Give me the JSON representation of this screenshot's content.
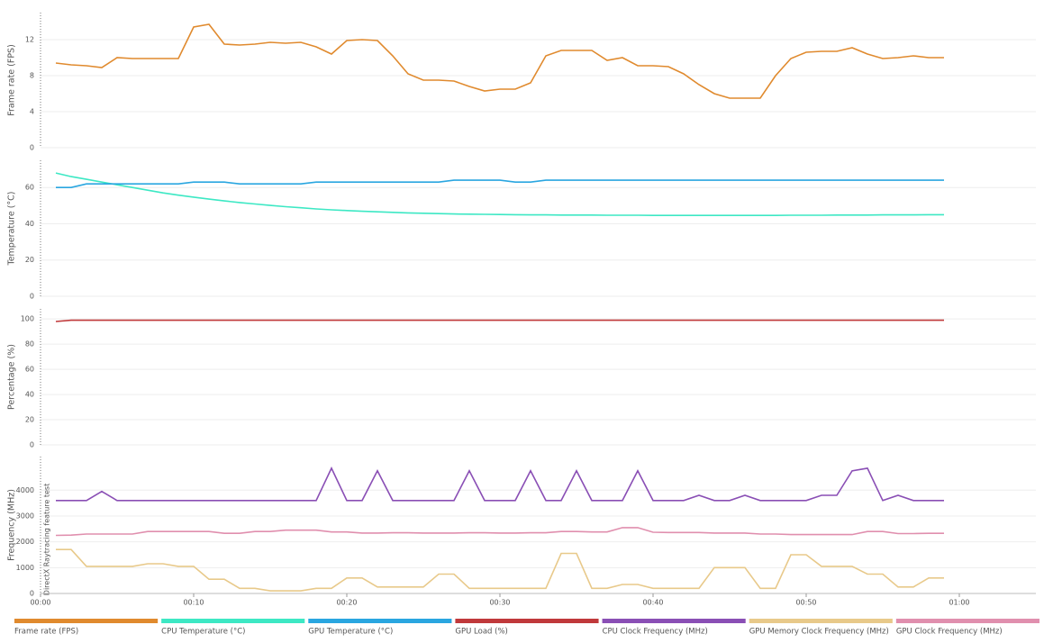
{
  "chart_data": [
    {
      "type": "line",
      "ylabel": "Frame rate (FPS)",
      "xlim": [
        0,
        65
      ],
      "ylim": [
        0,
        15
      ],
      "yticks": [
        0,
        4,
        8,
        12
      ],
      "grid": true,
      "x": [
        1,
        2,
        3,
        4,
        5,
        6,
        7,
        8,
        9,
        10,
        11,
        12,
        13,
        14,
        15,
        16,
        17,
        18,
        19,
        20,
        21,
        22,
        23,
        24,
        25,
        26,
        27,
        28,
        29,
        30,
        31,
        32,
        33,
        34,
        35,
        36,
        37,
        38,
        39,
        40,
        41,
        42,
        43,
        44,
        45,
        46,
        47,
        48,
        49,
        50,
        51,
        52,
        53,
        54,
        55,
        56,
        57,
        58,
        59
      ],
      "series": [
        {
          "name": "Frame rate (FPS)",
          "color": "#e08a2e",
          "values": [
            9.4,
            9.2,
            9.1,
            8.9,
            10.0,
            9.9,
            9.9,
            9.9,
            9.9,
            13.4,
            13.7,
            11.5,
            11.4,
            11.5,
            11.7,
            11.6,
            11.7,
            11.2,
            10.4,
            11.9,
            12.0,
            11.9,
            10.2,
            8.2,
            7.5,
            7.5,
            7.4,
            6.8,
            6.3,
            6.5,
            6.5,
            7.2,
            10.2,
            10.8,
            10.8,
            10.8,
            9.7,
            10.0,
            9.1,
            9.1,
            9.0,
            8.2,
            7.0,
            6.0,
            5.5,
            5.5,
            5.5,
            8.0,
            9.9,
            10.6,
            10.7,
            10.7,
            11.1,
            10.4,
            9.9,
            10.0,
            10.2,
            10.0,
            10.0
          ]
        }
      ]
    },
    {
      "type": "line",
      "ylabel": "Temperature (°C)",
      "xlim": [
        0,
        65
      ],
      "ylim": [
        0,
        75
      ],
      "yticks": [
        0,
        20,
        40,
        60
      ],
      "grid": true,
      "x": [
        1,
        2,
        3,
        4,
        5,
        6,
        7,
        8,
        9,
        10,
        11,
        12,
        13,
        14,
        15,
        16,
        17,
        18,
        19,
        20,
        21,
        22,
        23,
        24,
        25,
        26,
        27,
        28,
        29,
        30,
        31,
        32,
        33,
        34,
        35,
        36,
        37,
        38,
        39,
        40,
        41,
        42,
        43,
        44,
        45,
        46,
        47,
        48,
        49,
        50,
        51,
        52,
        53,
        54,
        55,
        56,
        57,
        58,
        59
      ],
      "series": [
        {
          "name": "CPU Temperature (°C)",
          "color": "#3de8c4",
          "values": [
            68,
            66,
            64.5,
            63,
            61.5,
            60,
            58.5,
            57,
            55.8,
            54.7,
            53.6,
            52.6,
            51.7,
            50.9,
            50.1,
            49.4,
            48.8,
            48.2,
            47.7,
            47.3,
            46.9,
            46.6,
            46.3,
            46,
            45.8,
            45.6,
            45.4,
            45.3,
            45.2,
            45.1,
            45,
            44.9,
            44.9,
            44.8,
            44.8,
            44.8,
            44.7,
            44.7,
            44.7,
            44.6,
            44.6,
            44.6,
            44.6,
            44.6,
            44.6,
            44.6,
            44.6,
            44.6,
            44.7,
            44.7,
            44.7,
            44.8,
            44.8,
            44.8,
            44.9,
            44.9,
            44.9,
            45,
            45
          ]
        },
        {
          "name": "GPU Temperature (°C)",
          "color": "#2aa6e0",
          "values": [
            60,
            60,
            62,
            62,
            62,
            62,
            62,
            62,
            62,
            63,
            63,
            63,
            62,
            62,
            62,
            62,
            62,
            63,
            63,
            63,
            63,
            63,
            63,
            63,
            63,
            63,
            64,
            64,
            64,
            64,
            63,
            63,
            64,
            64,
            64,
            64,
            64,
            64,
            64,
            64,
            64,
            64,
            64,
            64,
            64,
            64,
            64,
            64,
            64,
            64,
            64,
            64,
            64,
            64,
            64,
            64,
            64,
            64,
            64
          ]
        }
      ]
    },
    {
      "type": "line",
      "ylabel": "Percentage (%)",
      "xlim": [
        0,
        65
      ],
      "ylim": [
        0,
        108
      ],
      "yticks": [
        0,
        20,
        40,
        60,
        80,
        100
      ],
      "grid": true,
      "x": [
        1,
        2,
        3,
        4,
        5,
        6,
        7,
        8,
        9,
        10,
        11,
        12,
        13,
        14,
        15,
        16,
        17,
        18,
        19,
        20,
        21,
        22,
        23,
        24,
        25,
        26,
        27,
        28,
        29,
        30,
        31,
        32,
        33,
        34,
        35,
        36,
        37,
        38,
        39,
        40,
        41,
        42,
        43,
        44,
        45,
        46,
        47,
        48,
        49,
        50,
        51,
        52,
        53,
        54,
        55,
        56,
        57,
        58,
        59
      ],
      "series": [
        {
          "name": "GPU Load (%)",
          "color": "#c0393b",
          "values": [
            98,
            99,
            99,
            99,
            99,
            99,
            99,
            99,
            99,
            99,
            99,
            99,
            99,
            99,
            99,
            99,
            99,
            99,
            99,
            99,
            99,
            99,
            99,
            99,
            99,
            99,
            99,
            99,
            99,
            99,
            99,
            99,
            99,
            99,
            99,
            99,
            99,
            99,
            99,
            99,
            99,
            99,
            99,
            99,
            99,
            99,
            99,
            99,
            99,
            99,
            99,
            99,
            99,
            99,
            99,
            99,
            99,
            99,
            99
          ]
        }
      ]
    },
    {
      "type": "line",
      "ylabel": "Frequency (MHz)",
      "annotation": "DirectX Raytracing feature test",
      "xlim": [
        0,
        65
      ],
      "ylim": [
        0,
        5300
      ],
      "yticks": [
        0,
        1000,
        2000,
        3000,
        4000
      ],
      "grid": true,
      "xticks": [
        {
          "value": 0,
          "label": "00:00"
        },
        {
          "value": 10,
          "label": "00:10"
        },
        {
          "value": 20,
          "label": "00:20"
        },
        {
          "value": 30,
          "label": "00:30"
        },
        {
          "value": 40,
          "label": "00:40"
        },
        {
          "value": 50,
          "label": "00:50"
        },
        {
          "value": 60,
          "label": "01:00"
        }
      ],
      "x": [
        1,
        2,
        3,
        4,
        5,
        6,
        7,
        8,
        9,
        10,
        11,
        12,
        13,
        14,
        15,
        16,
        17,
        18,
        19,
        20,
        21,
        22,
        23,
        24,
        25,
        26,
        27,
        28,
        29,
        30,
        31,
        32,
        33,
        34,
        35,
        36,
        37,
        38,
        39,
        40,
        41,
        42,
        43,
        44,
        45,
        46,
        47,
        48,
        49,
        50,
        51,
        52,
        53,
        54,
        55,
        56,
        57,
        58,
        59
      ],
      "series": [
        {
          "name": "CPU Clock Frequency (MHz)",
          "color": "#8a4fb5",
          "values": [
            3600,
            3600,
            3600,
            3950,
            3600,
            3600,
            3600,
            3600,
            3600,
            3600,
            3600,
            3600,
            3600,
            3600,
            3600,
            3600,
            3600,
            3600,
            4850,
            3600,
            3600,
            4750,
            3600,
            3600,
            3600,
            3600,
            3600,
            4750,
            3600,
            3600,
            3600,
            4750,
            3600,
            3600,
            4750,
            3600,
            3600,
            3600,
            4750,
            3600,
            3600,
            3600,
            3800,
            3600,
            3600,
            3800,
            3600,
            3600,
            3600,
            3600,
            3800,
            3800,
            4750,
            4850,
            3600,
            3800,
            3600,
            3600,
            3600
          ]
        },
        {
          "name": "GPU Memory Clock Frequency (MHz)",
          "color": "#e8c98a",
          "values": [
            1700,
            1700,
            1050,
            1050,
            1050,
            1050,
            1150,
            1150,
            1050,
            1050,
            550,
            550,
            200,
            200,
            100,
            100,
            100,
            200,
            200,
            600,
            600,
            250,
            250,
            250,
            250,
            750,
            750,
            200,
            200,
            200,
            200,
            200,
            200,
            1550,
            1550,
            200,
            200,
            350,
            350,
            200,
            200,
            200,
            200,
            1000,
            1000,
            1000,
            200,
            200,
            1500,
            1500,
            1050,
            1050,
            1050,
            750,
            750,
            250,
            250,
            600,
            600
          ]
        },
        {
          "name": "GPU Clock Frequency (MHz)",
          "color": "#e08fae",
          "values": [
            2250,
            2260,
            2300,
            2300,
            2300,
            2300,
            2400,
            2400,
            2400,
            2400,
            2400,
            2330,
            2330,
            2400,
            2400,
            2450,
            2450,
            2450,
            2380,
            2380,
            2340,
            2340,
            2350,
            2350,
            2340,
            2340,
            2340,
            2350,
            2350,
            2340,
            2340,
            2350,
            2350,
            2400,
            2400,
            2380,
            2380,
            2550,
            2550,
            2370,
            2360,
            2360,
            2360,
            2340,
            2340,
            2340,
            2300,
            2300,
            2280,
            2280,
            2280,
            2280,
            2280,
            2400,
            2400,
            2320,
            2320,
            2330,
            2330
          ]
        }
      ]
    }
  ]
}
